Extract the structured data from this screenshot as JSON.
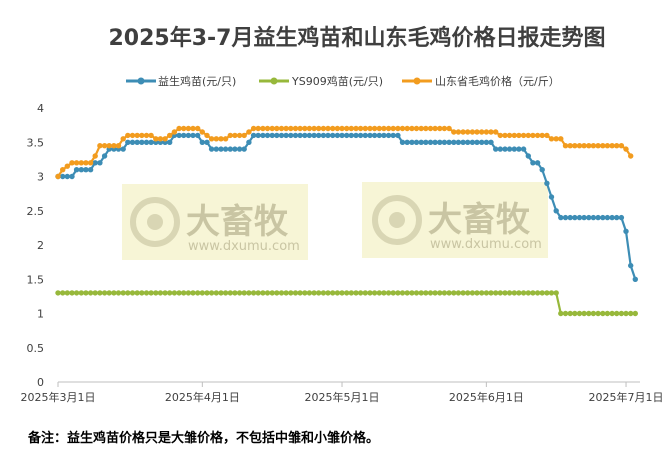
{
  "chart_data": {
    "type": "line",
    "title": "2025年3-7月益生鸡苗和山东毛鸡价格日报走势图",
    "xlabel": "",
    "ylabel": "",
    "ylim": [
      0,
      4
    ],
    "yticks": [
      "0",
      "0.5",
      "1",
      "1.5",
      "2",
      "2.5",
      "3",
      "3.5",
      "4"
    ],
    "xticks": [
      {
        "date": "2025-03-01",
        "label": "2025年3月1日"
      },
      {
        "date": "2025-04-01",
        "label": "2025年4月1日"
      },
      {
        "date": "2025-05-01",
        "label": "2025年5月1日"
      },
      {
        "date": "2025-06-01",
        "label": "2025年6月1日"
      },
      {
        "date": "2025-07-01",
        "label": "2025年7月1日"
      }
    ],
    "x_range": [
      "2025-03-01",
      "2025-07-04"
    ],
    "grid": false,
    "legend_position": "top",
    "series": [
      {
        "name": "益生鸡苗(元/只)",
        "color": "#3d8db5",
        "points": [
          [
            "2025-03-01",
            3.0
          ],
          [
            "2025-03-04",
            3.0
          ],
          [
            "2025-03-05",
            3.1
          ],
          [
            "2025-03-09",
            3.2
          ],
          [
            "2025-03-10",
            3.2
          ],
          [
            "2025-03-11",
            3.3
          ],
          [
            "2025-03-12",
            3.4
          ],
          [
            "2025-03-15",
            3.4
          ],
          [
            "2025-03-16",
            3.5
          ],
          [
            "2025-03-25",
            3.5
          ],
          [
            "2025-03-26",
            3.6
          ],
          [
            "2025-03-31",
            3.6
          ],
          [
            "2025-04-01",
            3.5
          ],
          [
            "2025-04-02",
            3.5
          ],
          [
            "2025-04-03",
            3.4
          ],
          [
            "2025-04-10",
            3.4
          ],
          [
            "2025-04-11",
            3.5
          ],
          [
            "2025-04-12",
            3.6
          ],
          [
            "2025-05-13",
            3.6
          ],
          [
            "2025-05-14",
            3.5
          ],
          [
            "2025-06-02",
            3.5
          ],
          [
            "2025-06-03",
            3.4
          ],
          [
            "2025-06-09",
            3.4
          ],
          [
            "2025-06-10",
            3.3
          ],
          [
            "2025-06-11",
            3.2
          ],
          [
            "2025-06-12",
            3.2
          ],
          [
            "2025-06-13",
            3.1
          ],
          [
            "2025-06-14",
            2.9
          ],
          [
            "2025-06-15",
            2.7
          ],
          [
            "2025-06-16",
            2.5
          ],
          [
            "2025-06-17",
            2.4
          ],
          [
            "2025-06-30",
            2.4
          ],
          [
            "2025-07-01",
            2.2
          ],
          [
            "2025-07-02",
            1.7
          ],
          [
            "2025-07-03",
            1.5
          ]
        ]
      },
      {
        "name": "YS909鸡苗(元/只)",
        "color": "#97b83b",
        "points": [
          [
            "2025-03-01",
            1.3
          ],
          [
            "2025-06-16",
            1.3
          ],
          [
            "2025-06-17",
            1.0
          ],
          [
            "2025-07-03",
            1.0
          ]
        ]
      },
      {
        "name": "山东省毛鸡价格（元/斤）",
        "color": "#f29c1f",
        "points": [
          [
            "2025-03-01",
            3.0
          ],
          [
            "2025-03-02",
            3.1
          ],
          [
            "2025-03-03",
            3.15
          ],
          [
            "2025-03-04",
            3.2
          ],
          [
            "2025-03-08",
            3.2
          ],
          [
            "2025-03-09",
            3.3
          ],
          [
            "2025-03-10",
            3.45
          ],
          [
            "2025-03-14",
            3.45
          ],
          [
            "2025-03-15",
            3.55
          ],
          [
            "2025-03-16",
            3.6
          ],
          [
            "2025-03-21",
            3.6
          ],
          [
            "2025-03-22",
            3.55
          ],
          [
            "2025-03-24",
            3.55
          ],
          [
            "2025-03-25",
            3.6
          ],
          [
            "2025-03-26",
            3.65
          ],
          [
            "2025-03-27",
            3.7
          ],
          [
            "2025-03-31",
            3.7
          ],
          [
            "2025-04-01",
            3.65
          ],
          [
            "2025-04-02",
            3.6
          ],
          [
            "2025-04-03",
            3.55
          ],
          [
            "2025-04-06",
            3.55
          ],
          [
            "2025-04-07",
            3.6
          ],
          [
            "2025-04-10",
            3.6
          ],
          [
            "2025-04-11",
            3.65
          ],
          [
            "2025-04-12",
            3.7
          ],
          [
            "2025-05-24",
            3.7
          ],
          [
            "2025-05-25",
            3.65
          ],
          [
            "2025-06-03",
            3.65
          ],
          [
            "2025-06-04",
            3.6
          ],
          [
            "2025-06-14",
            3.6
          ],
          [
            "2025-06-15",
            3.55
          ],
          [
            "2025-06-17",
            3.55
          ],
          [
            "2025-06-18",
            3.45
          ],
          [
            "2025-06-30",
            3.45
          ],
          [
            "2025-07-01",
            3.4
          ],
          [
            "2025-07-02",
            3.3
          ]
        ]
      }
    ],
    "watermarks": [
      {
        "text": "大畜牧",
        "sub": "www.dxumu.com"
      },
      {
        "text": "大畜牧",
        "sub": "www.dxumu.com"
      }
    ],
    "note": "备注：益生鸡苗价格只是大雏价格，不包括中雏和小雏价格。"
  }
}
